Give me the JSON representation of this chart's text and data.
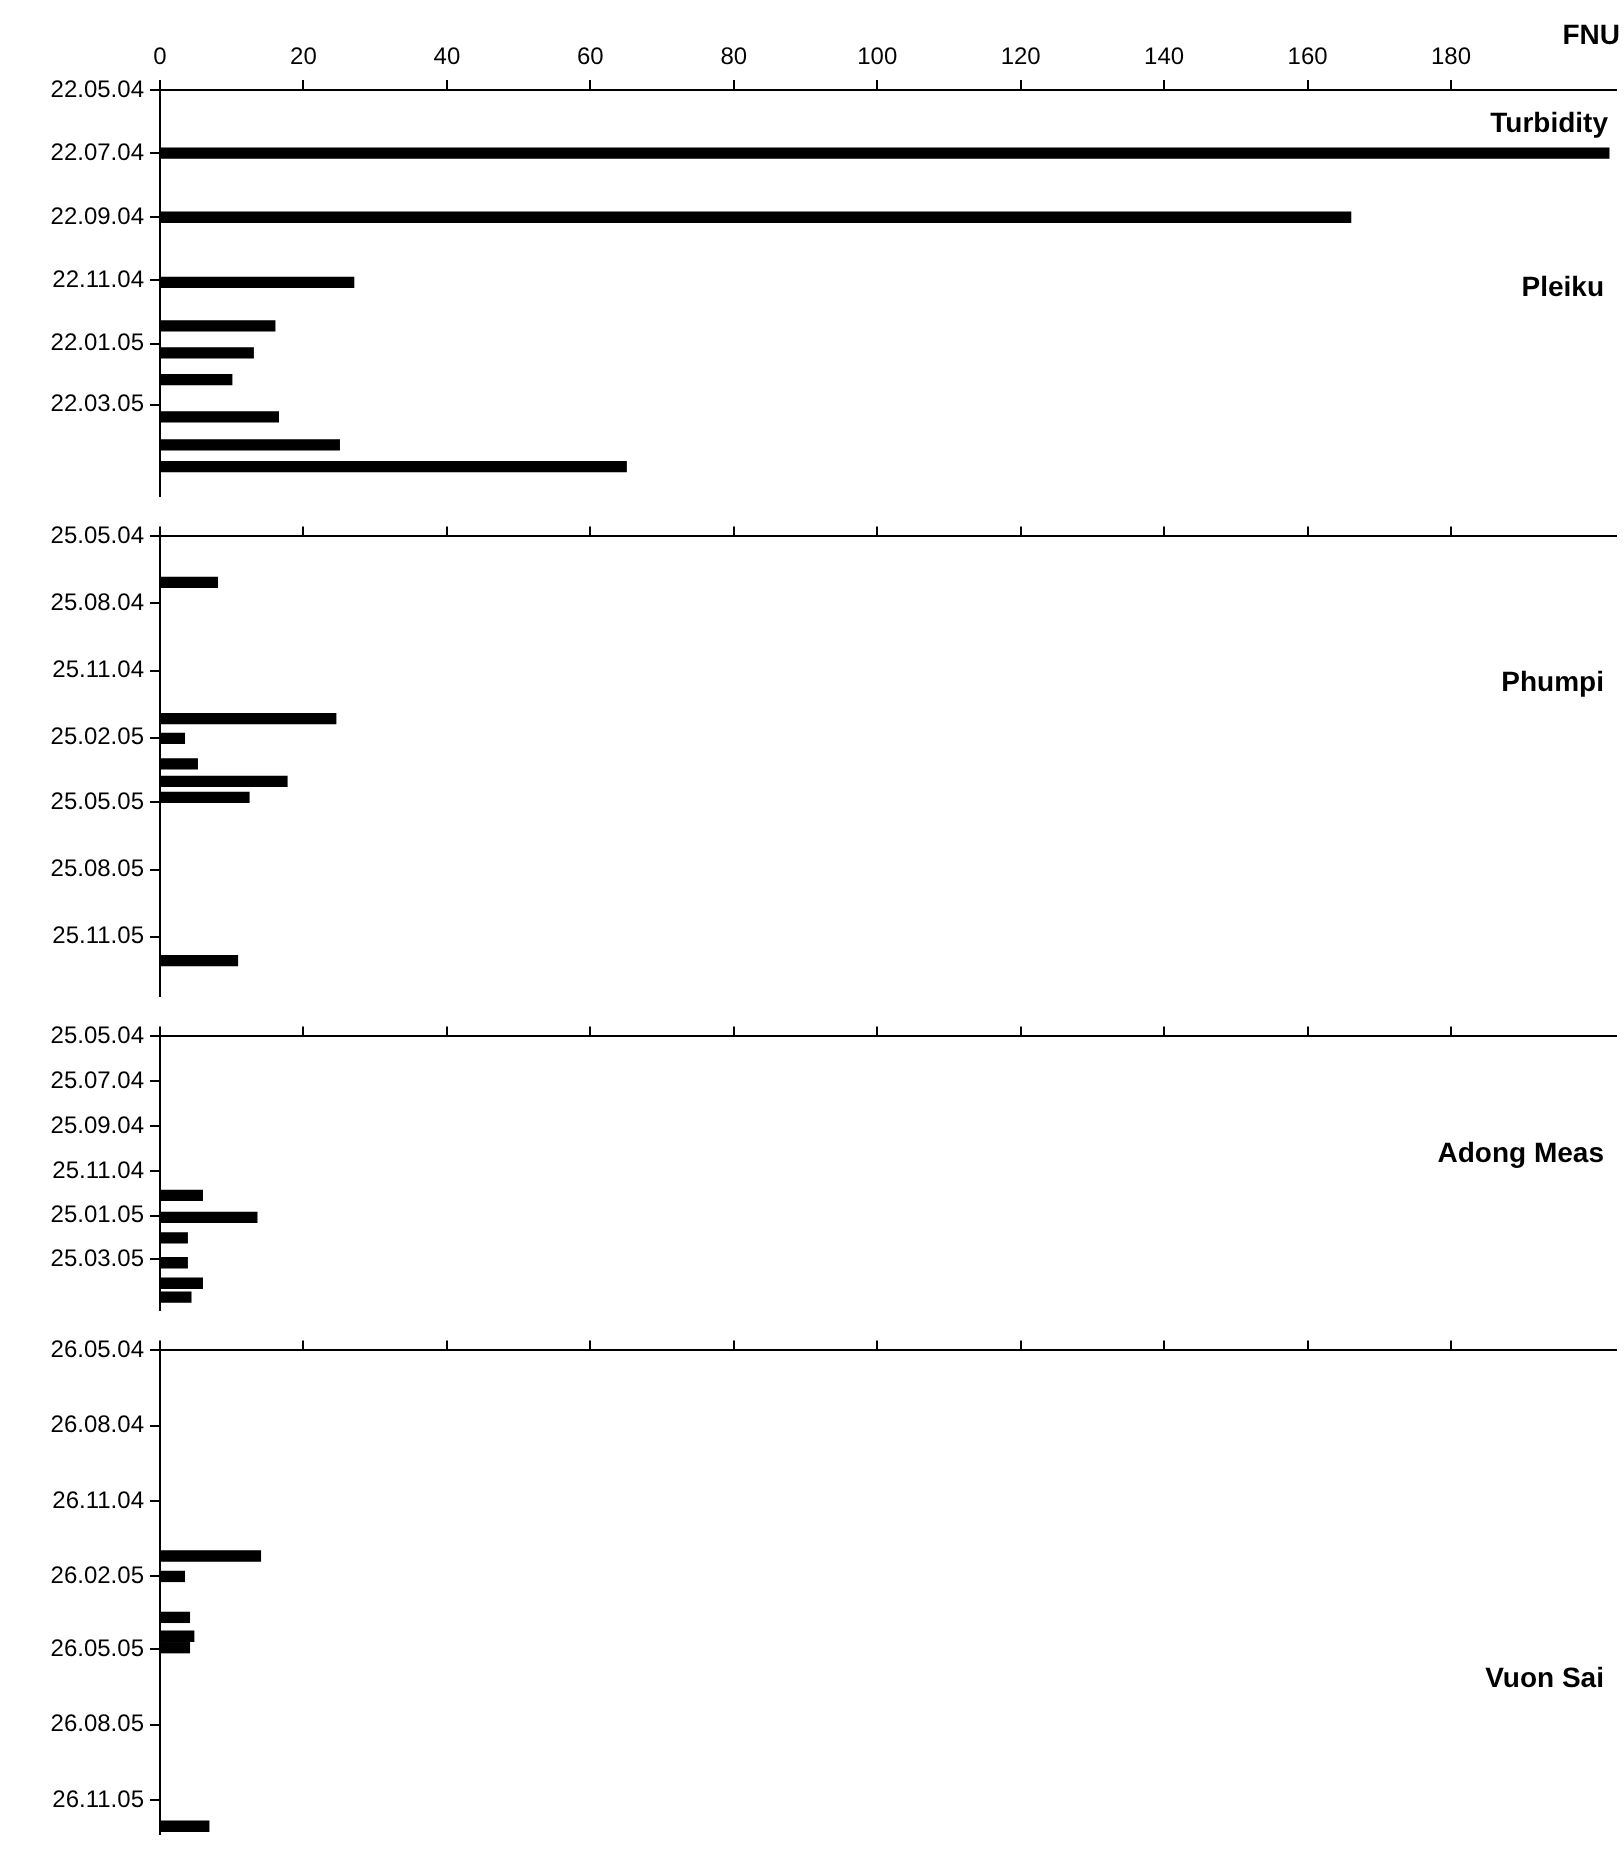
{
  "chart_data": [
    {
      "type": "bar",
      "orientation": "horizontal",
      "title": "Pleiku",
      "xlabel": "FNU",
      "annotations": [
        "Turbidity"
      ],
      "color": "#000000",
      "grid": false,
      "x": [
        "2004-07-22",
        "2004-09-22",
        "2004-11-24",
        "2005-01-05",
        "2005-01-31",
        "2005-02-26",
        "2005-04-03",
        "2005-04-30",
        "2005-05-21"
      ],
      "values": [
        202,
        166,
        27,
        16,
        13,
        10,
        16.5,
        25,
        65
      ],
      "xlim": [
        0,
        203
      ],
      "xticks": [
        0,
        20,
        40,
        60,
        80,
        100,
        120,
        140,
        160,
        180
      ],
      "ylim": [
        "2005-06-18",
        "2004-05-22"
      ],
      "yticks": [
        {
          "value": "2004-05-22",
          "label": "22.05.04"
        },
        {
          "value": "2004-07-22",
          "label": "22.07.04"
        },
        {
          "value": "2004-09-22",
          "label": "22.09.04"
        },
        {
          "value": "2004-11-22",
          "label": "22.11.04"
        },
        {
          "value": "2005-01-22",
          "label": "22.01.05"
        },
        {
          "value": "2005-03-22",
          "label": "22.03.05"
        }
      ]
    },
    {
      "type": "bar",
      "orientation": "horizontal",
      "title": "Phumpi",
      "color": "#000000",
      "grid": false,
      "tick_labels": "y",
      "x": [
        "2004-07-27",
        "2005-01-30",
        "2005-02-26",
        "2005-04-02",
        "2005-04-26",
        "2005-05-18",
        "2005-12-28"
      ],
      "values": [
        8,
        24.5,
        3.4,
        5.2,
        17.7,
        12.4,
        10.8
      ],
      "xlim": [
        0,
        203
      ],
      "xticks": [
        0,
        20,
        40,
        60,
        80,
        100,
        120,
        140,
        160,
        180
      ],
      "ylim": [
        "2006-02-14",
        "2004-05-25"
      ],
      "yticks": [
        {
          "value": "2004-05-25",
          "label": "25.05.04"
        },
        {
          "value": "2004-08-25",
          "label": "25.08.04"
        },
        {
          "value": "2004-11-25",
          "label": "25.11.04"
        },
        {
          "value": "2005-02-25",
          "label": "25.02.05"
        },
        {
          "value": "2005-05-25",
          "label": "25.05.05"
        },
        {
          "value": "2005-08-25",
          "label": "25.08.05"
        },
        {
          "value": "2005-11-25",
          "label": "25.11.05"
        }
      ]
    },
    {
      "type": "bar",
      "orientation": "horizontal",
      "title": "Adong Meas",
      "color": "#000000",
      "grid": false,
      "tick_labels": "y",
      "x": [
        "2004-12-28",
        "2005-01-27",
        "2005-02-24",
        "2005-03-30",
        "2005-04-27",
        "2005-05-16"
      ],
      "values": [
        5.9,
        13.5,
        3.8,
        3.8,
        5.9,
        4.3
      ],
      "xlim": [
        0,
        203
      ],
      "xticks": [
        0,
        20,
        40,
        60,
        80,
        100,
        120,
        140,
        160,
        180
      ],
      "ylim": [
        "2005-06-02",
        "2004-05-25"
      ],
      "yticks": [
        {
          "value": "2004-05-25",
          "label": "25.05.04"
        },
        {
          "value": "2004-07-25",
          "label": "25.07.04"
        },
        {
          "value": "2004-09-25",
          "label": "25.09.04"
        },
        {
          "value": "2004-11-25",
          "label": "25.11.04"
        },
        {
          "value": "2005-01-25",
          "label": "25.01.05"
        },
        {
          "value": "2005-03-25",
          "label": "25.03.05"
        }
      ]
    },
    {
      "type": "bar",
      "orientation": "horizontal",
      "title": "Vuon Sai",
      "color": "#000000",
      "grid": false,
      "tick_labels": "y",
      "x": [
        "2005-02-01",
        "2005-02-26",
        "2005-04-17",
        "2005-05-10",
        "2005-05-24",
        "2005-12-28"
      ],
      "values": [
        14,
        3.4,
        4.1,
        4.7,
        4.1,
        6.8
      ],
      "xlim": [
        0,
        203
      ],
      "xticks": [
        0,
        20,
        40,
        60,
        80,
        100,
        120,
        140,
        160,
        180
      ],
      "ylim": [
        "2006-01-06",
        "2004-05-26"
      ],
      "yticks": [
        {
          "value": "2004-05-26",
          "label": "26.05.04"
        },
        {
          "value": "2004-08-26",
          "label": "26.08.04"
        },
        {
          "value": "2004-11-26",
          "label": "26.11.04"
        },
        {
          "value": "2005-02-26",
          "label": "26.02.05"
        },
        {
          "value": "2005-05-26",
          "label": "26.05.05"
        },
        {
          "value": "2005-08-26",
          "label": "26.08.05"
        },
        {
          "value": "2005-11-26",
          "label": "26.11.05"
        }
      ]
    }
  ]
}
